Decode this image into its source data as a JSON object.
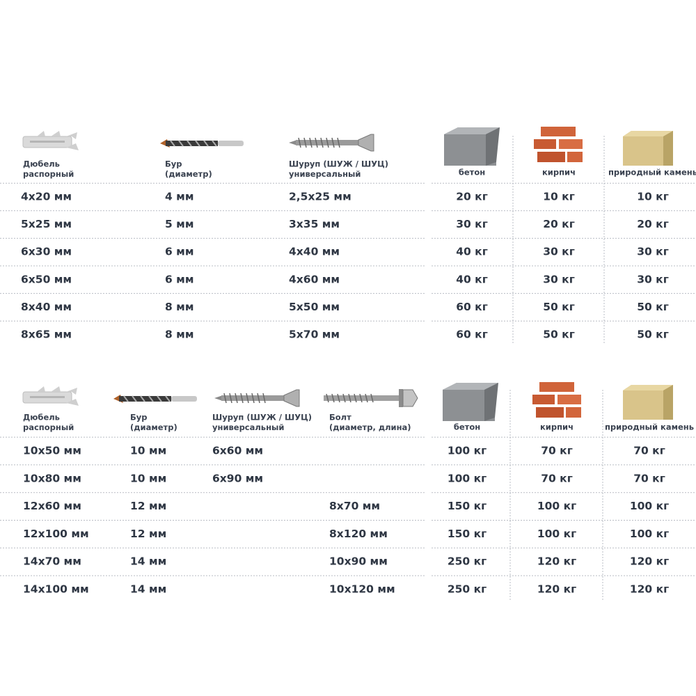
{
  "tables": [
    {
      "headers": [
        {
          "lines": [
            "Дюбель",
            "распорный"
          ]
        },
        {
          "lines": [
            "Бур",
            "(диаметр)"
          ]
        },
        {
          "lines": [
            "Шуруп (ШУЖ / ШУЦ)",
            "универсальный"
          ]
        },
        {
          "lines": [
            "бетон"
          ]
        },
        {
          "lines": [
            "кирпич"
          ]
        },
        {
          "lines": [
            "природный камень"
          ]
        }
      ],
      "rows": [
        [
          "4х20 мм",
          "4 мм",
          "2,5х25 мм",
          "20 кг",
          "10 кг",
          "10 кг"
        ],
        [
          "5х25 мм",
          "5 мм",
          "3х35 мм",
          "30 кг",
          "20 кг",
          "20 кг"
        ],
        [
          "6х30 мм",
          "6 мм",
          "4х40 мм",
          "40 кг",
          "30 кг",
          "30 кг"
        ],
        [
          "6х50 мм",
          "6 мм",
          "4х60 мм",
          "40 кг",
          "30 кг",
          "30 кг"
        ],
        [
          "8х40 мм",
          "8 мм",
          "5х50 мм",
          "60 кг",
          "50 кг",
          "50 кг"
        ],
        [
          "8х65 мм",
          "8 мм",
          "5х70 мм",
          "60 кг",
          "50 кг",
          "50 кг"
        ]
      ]
    },
    {
      "headers": [
        {
          "lines": [
            "Дюбель",
            "распорный"
          ]
        },
        {
          "lines": [
            "Бур",
            "(диаметр)"
          ]
        },
        {
          "lines": [
            "Шуруп (ШУЖ / ШУЦ)",
            "универсальный"
          ]
        },
        {
          "lines": [
            "Болт",
            "(диаметр, длина)"
          ]
        },
        {
          "lines": [
            "бетон"
          ]
        },
        {
          "lines": [
            "кирпич"
          ]
        },
        {
          "lines": [
            "природный камень"
          ]
        }
      ],
      "rows": [
        [
          "10х50 мм",
          "10 мм",
          "6х60 мм",
          null,
          "100 кг",
          "70 кг",
          "70 кг"
        ],
        [
          "10х80 мм",
          "10 мм",
          "6х90 мм",
          null,
          "100 кг",
          "70 кг",
          "70 кг"
        ],
        [
          "12х60 мм",
          "12 мм",
          null,
          "8х70 мм",
          "150 кг",
          "100 кг",
          "100 кг"
        ],
        [
          "12х100 мм",
          "12 мм",
          null,
          "8х120 мм",
          "150 кг",
          "100 кг",
          "100 кг"
        ],
        [
          "14х70 мм",
          "14 мм",
          null,
          "10х90 мм",
          "250 кг",
          "120 кг",
          "120 кг"
        ],
        [
          "14х100 мм",
          "14 мм",
          null,
          "10х120 мм",
          "250 кг",
          "120 кг",
          "120 кг"
        ]
      ]
    }
  ]
}
